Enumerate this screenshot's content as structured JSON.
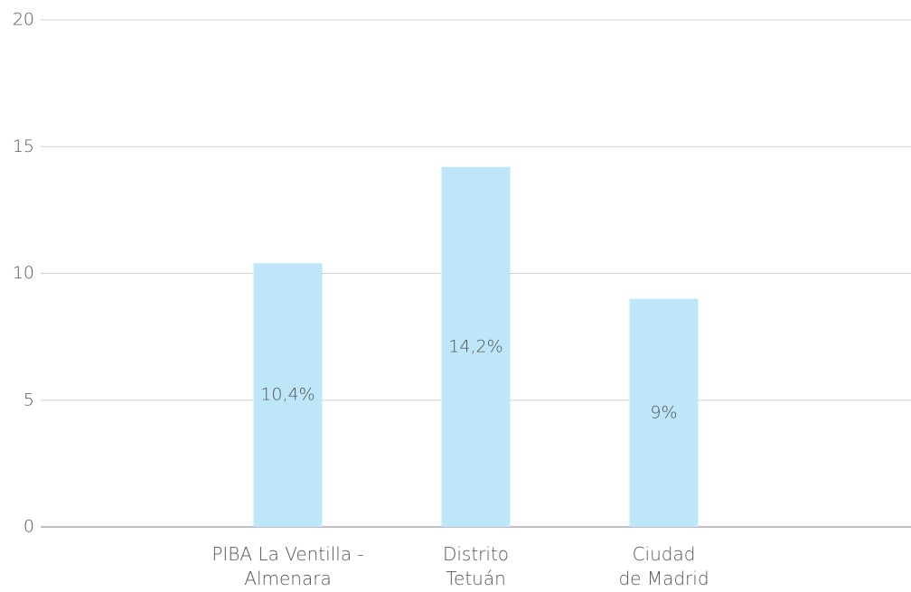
{
  "chart_data": {
    "type": "bar",
    "categories": [
      "PIBA La Ventilla -\nAlmenara",
      "Distrito\nTetuán",
      "Ciudad\nde Madrid"
    ],
    "values": [
      10.4,
      14.2,
      9
    ],
    "value_labels": [
      "10,4%",
      "14,2%",
      "9%"
    ],
    "color": "#bde6f8",
    "ylim": [
      0,
      20
    ],
    "yticks": [
      0,
      5,
      10,
      15,
      20
    ],
    "grid": true
  }
}
